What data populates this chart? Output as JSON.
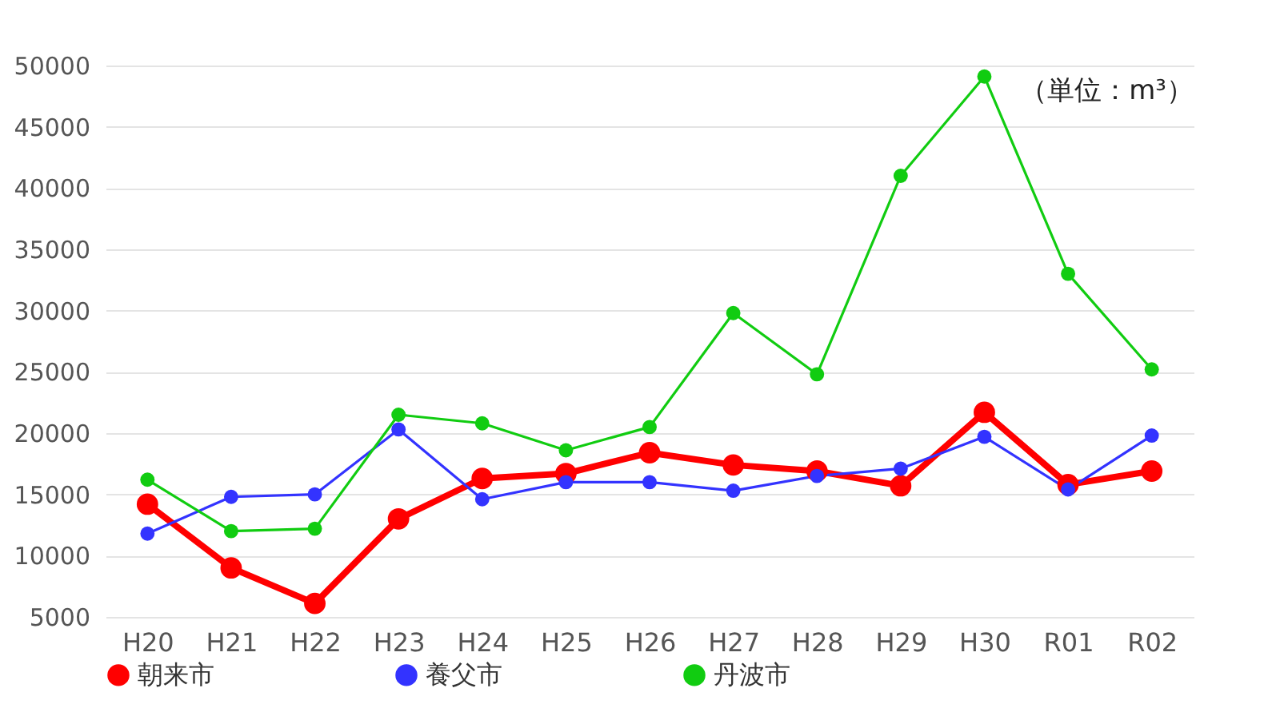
{
  "chart_data": {
    "type": "line",
    "categories": [
      "H20",
      "H21",
      "H22",
      "H23",
      "H24",
      "H25",
      "H26",
      "H27",
      "H28",
      "H29",
      "H30",
      "R01",
      "R02"
    ],
    "series": [
      {
        "name": "朝来市",
        "color": "#ff0000",
        "values": [
          14200,
          9000,
          6100,
          13000,
          16300,
          16700,
          18400,
          17400,
          16900,
          15700,
          21700,
          15800,
          16900
        ]
      },
      {
        "name": "養父市",
        "color": "#3333ff",
        "values": [
          11800,
          14800,
          15000,
          20300,
          14600,
          16000,
          16000,
          15300,
          16500,
          17100,
          19700,
          15400,
          19800
        ]
      },
      {
        "name": "丹波市",
        "color": "#11cc11",
        "values": [
          16200,
          12000,
          12200,
          21500,
          20800,
          18600,
          20500,
          29800,
          24800,
          41000,
          49100,
          33000,
          25200
        ]
      }
    ],
    "ylim": [
      5000,
      50000
    ],
    "yticks": [
      5000,
      10000,
      15000,
      20000,
      25000,
      30000,
      35000,
      40000,
      45000,
      50000
    ],
    "grid": "y",
    "legend": "bottom",
    "marker": "circle",
    "annotations": [
      "（単位：m³）"
    ]
  }
}
